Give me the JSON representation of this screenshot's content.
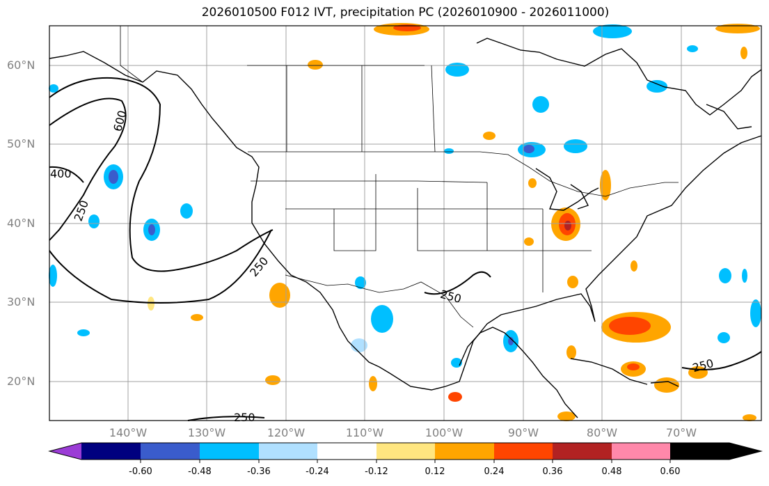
{
  "title": "2026010500 F012 IVT, precipitation PC (2026010900 - 2026011000)",
  "lat_labels": [
    "60°N",
    "50°N",
    "40°N",
    "30°N",
    "20°N"
  ],
  "lon_labels": [
    "140°W",
    "130°W",
    "120°W",
    "110°W",
    "100°W",
    "90°W",
    "80°W",
    "70°W"
  ],
  "contour_labels": [
    "600",
    "400",
    "250",
    "250",
    "250",
    "250",
    "250"
  ],
  "colorbar": {
    "ticks": [
      "-0.60",
      "-0.48",
      "-0.36",
      "-0.24",
      "-0.12",
      "0.12",
      "0.24",
      "0.36",
      "0.48",
      "0.60"
    ],
    "colors": [
      "#9b3cd6",
      "#00007f",
      "#3a5ccc",
      "#00bfff",
      "#b0e0ff",
      "#ffffff",
      "#ffe680",
      "#ffa500",
      "#ff4500",
      "#b22222",
      "#ff88aa"
    ]
  }
}
